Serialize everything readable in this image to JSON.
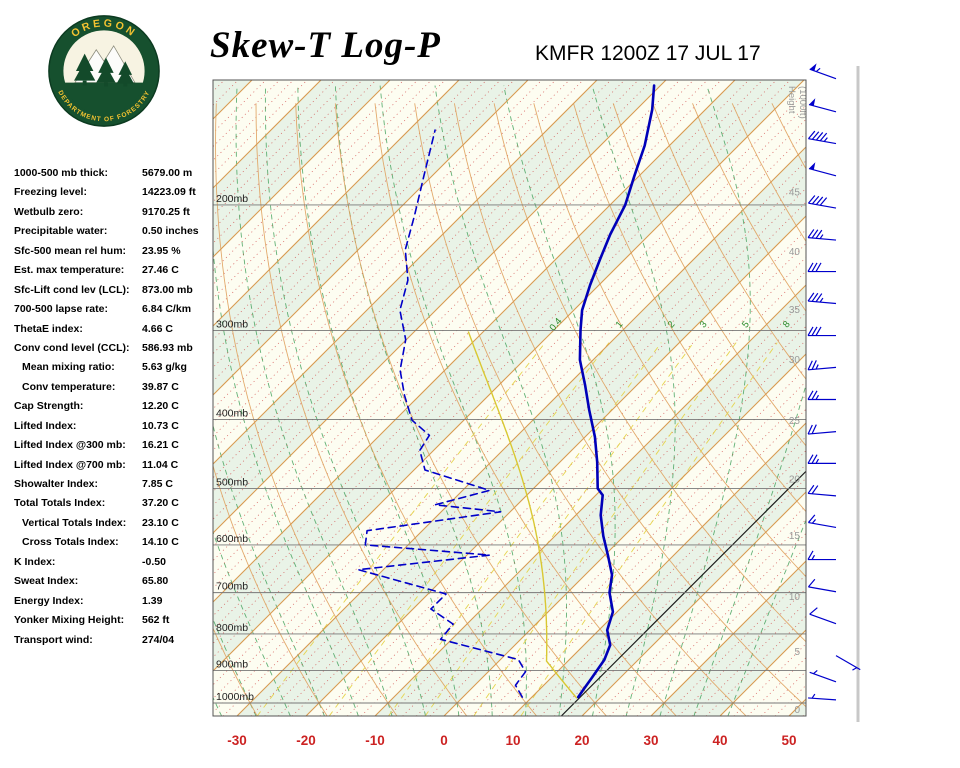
{
  "header": {
    "title": "Skew-T Log-P",
    "station_line": "KMFR 1200Z 17 JUL 17",
    "logo_text_top": "OREGON",
    "logo_text_bottom": "DEPARTMENT OF FORESTRY"
  },
  "indices": [
    {
      "label": "1000-500 mb thick:",
      "value": "5679.00 m"
    },
    {
      "label": "Freezing level:",
      "value": "14223.09 ft"
    },
    {
      "label": "Wetbulb zero:",
      "value": "9170.25 ft"
    },
    {
      "label": "Precipitable water:",
      "value": "0.50 inches"
    },
    {
      "label": "Sfc-500 mean rel hum:",
      "value": "23.95 %"
    },
    {
      "label": "Est. max temperature:",
      "value": "27.46 C"
    },
    {
      "label": "Sfc-Lift cond lev (LCL):",
      "value": "873.00 mb"
    },
    {
      "label": "700-500 lapse rate:",
      "value": "6.84 C/km"
    },
    {
      "label": "ThetaE index:",
      "value": "4.66 C"
    },
    {
      "label": "Conv cond level (CCL):",
      "value": "586.93 mb"
    },
    {
      "label": "Mean mixing ratio:",
      "value": "5.63 g/kg",
      "indent": true
    },
    {
      "label": "Conv temperature:",
      "value": "39.87 C",
      "indent": true
    },
    {
      "label": "Cap Strength:",
      "value": "12.20 C"
    },
    {
      "label": "Lifted Index:",
      "value": "10.73 C"
    },
    {
      "label": "Lifted Index @300 mb:",
      "value": "16.21 C"
    },
    {
      "label": "Lifted Index @700 mb:",
      "value": "11.04 C"
    },
    {
      "label": "Showalter Index:",
      "value": "7.85 C"
    },
    {
      "label": "Total Totals Index:",
      "value": "37.20 C"
    },
    {
      "label": "Vertical Totals Index:",
      "value": "23.10 C",
      "indent": true
    },
    {
      "label": "Cross Totals Index:",
      "value": "14.10 C",
      "indent": true
    },
    {
      "label": "K Index:",
      "value": "-0.50"
    },
    {
      "label": "Sweat Index:",
      "value": "65.80"
    },
    {
      "label": "Energy Index:",
      "value": "1.39"
    },
    {
      "label": "Yonker Mixing Height:",
      "value": "562 ft"
    },
    {
      "label": "Transport wind:",
      "value": "274/04"
    }
  ],
  "chart_data": {
    "type": "line",
    "title": "Skew-T Log-P",
    "station": "KMFR 1200Z 17 JUL 17",
    "pressure_axis": {
      "ticks_mb": [
        200,
        300,
        400,
        500,
        600,
        700,
        800,
        900,
        1000
      ],
      "label_suffix": "mb",
      "range_mb": [
        133,
        1043
      ],
      "scale": "log"
    },
    "temp_axis": {
      "ticks_c": [
        -30,
        -20,
        -10,
        0,
        10,
        20,
        30,
        40,
        50
      ],
      "unit": "C",
      "skew_deg": 45
    },
    "height_axis": {
      "title": "Height (1000ft)",
      "ticks_kft": [
        45,
        40,
        35,
        30,
        25,
        20,
        15,
        10,
        5,
        0
      ],
      "tick_pressures_mb": [
        192,
        233,
        281,
        330,
        402,
        486,
        583,
        710,
        848,
        1023
      ]
    },
    "mixing_ratio_lines_gkg": [
      0.4,
      1,
      2,
      3,
      5,
      8
    ],
    "reference_isotherm_c": 17,
    "parcel": {
      "surface_pressure_mb": 985,
      "surface_temp_c": 16.7,
      "lcl_mb": 873,
      "top_mb": 300,
      "color": "#d9c832"
    },
    "series": [
      {
        "name": "temperature",
        "style": "solid",
        "color": "#0000b8",
        "points_p_t": [
          [
            981,
            16.7
          ],
          [
            959,
            16.4
          ],
          [
            922,
            15.9
          ],
          [
            870,
            15.1
          ],
          [
            829,
            13.8
          ],
          [
            790,
            11.2
          ],
          [
            745,
            9.4
          ],
          [
            700,
            6.1
          ],
          [
            661,
            3.9
          ],
          [
            622,
            0.6
          ],
          [
            583,
            -3.0
          ],
          [
            545,
            -6.4
          ],
          [
            511,
            -9.0
          ],
          [
            500,
            -10.7
          ],
          [
            459,
            -14.6
          ],
          [
            423,
            -18.6
          ],
          [
            388,
            -23.3
          ],
          [
            358,
            -27.5
          ],
          [
            330,
            -31.9
          ],
          [
            300,
            -36.1
          ],
          [
            281,
            -38.8
          ],
          [
            259,
            -41.3
          ],
          [
            239,
            -43.5
          ],
          [
            220,
            -45.7
          ],
          [
            200,
            -47.8
          ],
          [
            182,
            -50.7
          ],
          [
            165,
            -53.6
          ],
          [
            147,
            -57.7
          ],
          [
            136,
            -60.9
          ]
        ]
      },
      {
        "name": "dewpoint",
        "style": "dashed",
        "color": "#0000c8",
        "points_p_t": [
          [
            981,
            8.6
          ],
          [
            944,
            5.9
          ],
          [
            904,
            5.4
          ],
          [
            869,
            2.6
          ],
          [
            814,
            -11.6
          ],
          [
            775,
            -12.0
          ],
          [
            738,
            -17.4
          ],
          [
            703,
            -17.4
          ],
          [
            650,
            -33.6
          ],
          [
            620,
            -16.7
          ],
          [
            600,
            -36.2
          ],
          [
            573,
            -38.0
          ],
          [
            539,
            -21.4
          ],
          [
            527,
            -31.9
          ],
          [
            503,
            -26.1
          ],
          [
            471,
            -38.4
          ],
          [
            442,
            -42.0
          ],
          [
            421,
            -42.8
          ],
          [
            401,
            -47.5
          ],
          [
            370,
            -52.2
          ],
          [
            341,
            -56.5
          ],
          [
            309,
            -60.1
          ],
          [
            281,
            -65.2
          ],
          [
            255,
            -68.4
          ],
          [
            231,
            -73.2
          ],
          [
            207,
            -76.8
          ],
          [
            182,
            -81.2
          ],
          [
            157,
            -86.2
          ]
        ]
      }
    ],
    "winds_p_dir_spd": [
      [
        133,
        290,
        55
      ],
      [
        148,
        285,
        50
      ],
      [
        164,
        280,
        45
      ],
      [
        182,
        285,
        50
      ],
      [
        202,
        280,
        40
      ],
      [
        224,
        275,
        35
      ],
      [
        248,
        270,
        30
      ],
      [
        275,
        275,
        35
      ],
      [
        305,
        270,
        30
      ],
      [
        338,
        265,
        25
      ],
      [
        375,
        270,
        25
      ],
      [
        416,
        265,
        20
      ],
      [
        461,
        270,
        25
      ],
      [
        512,
        275,
        20
      ],
      [
        567,
        280,
        15
      ],
      [
        629,
        270,
        15
      ],
      [
        698,
        280,
        10
      ],
      [
        774,
        290,
        10
      ],
      [
        858,
        120,
        5
      ],
      [
        934,
        290,
        5
      ],
      [
        990,
        274,
        4
      ]
    ]
  },
  "colors": {
    "band_green": "#e9f3e7",
    "band_cream": "#fdfdf1",
    "isotherm": "#d89a50",
    "isotherm_minor": "#cc3333",
    "dry_adiabat": "#e0a25f",
    "moist_adiabat": "#3d9e57",
    "mixing_line": "#e6d44f",
    "mixing_label": "#2a8a2a",
    "isobar": "#777777",
    "temp_axis": "#cc2222",
    "height_label": "#999999",
    "reference_line": "#1a1a1a",
    "wind": "#0000cc",
    "logo_ring": "#16502e",
    "logo_text": "#f3c231"
  }
}
